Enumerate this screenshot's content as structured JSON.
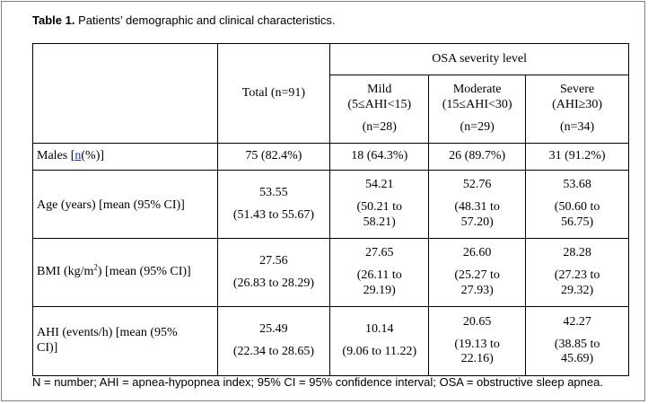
{
  "caption": {
    "label": "Table 1.",
    "text": " Patients’ demographic and clinical characteristics."
  },
  "header": {
    "group_label": "OSA severity level",
    "total": "Total (n=91)",
    "mild_name": "Mild",
    "mild_range": "(5≤AHI<15)",
    "mild_n": "(n=28)",
    "moderate_name": "Moderate",
    "moderate_range": "(15≤AHI<30)",
    "moderate_n": "(n=29)",
    "severe_name": "Severe",
    "severe_range": "(AHI≥30)",
    "severe_n": "(n=34)"
  },
  "rows": {
    "males": {
      "label_pre": "Males [",
      "label_link": "n",
      "label_post": "(%)]",
      "total": "75 (82.4%)",
      "mild": "18 (64.3%)",
      "moderate": "26 (89.7%)",
      "severe": "31 (91.2%)"
    },
    "age": {
      "label": "Age (years) [mean (95% CI)]",
      "total_mean": "53.55",
      "total_ci": "(51.43 to 55.67)",
      "mild_mean": "54.21",
      "mild_ci_1": "(50.21 to",
      "mild_ci_2": "58.21)",
      "moderate_mean": "52.76",
      "moderate_ci_1": "(48.31 to",
      "moderate_ci_2": "57.20)",
      "severe_mean": "53.68",
      "severe_ci_1": "(50.60 to",
      "severe_ci_2": "56.75)"
    },
    "bmi": {
      "label_pre": "BMI (kg/m",
      "label_sup": "2",
      "label_post": ") [mean (95% CI)]",
      "total_mean": "27.56",
      "total_ci": "(26.83 to 28.29)",
      "mild_mean": "27.65",
      "mild_ci_1": "(26.11 to",
      "mild_ci_2": "29.19)",
      "moderate_mean": "26.60",
      "moderate_ci_1": "(25.27 to",
      "moderate_ci_2": "27.93)",
      "severe_mean": "28.28",
      "severe_ci_1": "(27.23 to",
      "severe_ci_2": "29.32)"
    },
    "ahi": {
      "label_1": "AHI (events/h) [mean (95%",
      "label_2": "CI)]",
      "total_mean": "25.49",
      "total_ci": "(22.34 to 28.65)",
      "mild_mean": "10.14",
      "mild_ci": "(9.06 to 11.22)",
      "moderate_mean": "20.65",
      "moderate_ci_1": "(19.13 to",
      "moderate_ci_2": "22.16)",
      "severe_mean": "42.27",
      "severe_ci_1": "(38.85 to",
      "severe_ci_2": "45.69)"
    }
  },
  "footnote": "N = number; AHI = apnea-hypopnea index; 95% CI = 95% confidence interval; OSA = obstructive sleep apnea."
}
